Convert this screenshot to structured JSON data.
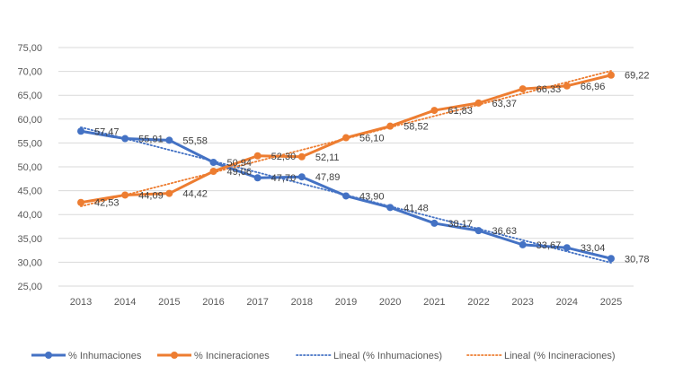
{
  "chart_data": {
    "type": "line",
    "x": [
      "2013",
      "2014",
      "2015",
      "2016",
      "2017",
      "2018",
      "2019",
      "2020",
      "2021",
      "2022",
      "2023",
      "2024",
      "2025"
    ],
    "series": [
      {
        "name": "% Inhumaciones",
        "values": [
          57.47,
          55.91,
          55.58,
          50.94,
          47.7,
          47.89,
          43.9,
          41.48,
          38.17,
          36.63,
          33.67,
          33.04,
          30.78
        ],
        "labels": [
          "57,47",
          "55,91",
          "55,58",
          "50,94",
          "47,70",
          "47,89",
          "43,90",
          "41,48",
          "38,17",
          "36,63",
          "33,67",
          "33,04",
          "30,78"
        ],
        "color": "#4472C4"
      },
      {
        "name": "% Incineraciones",
        "values": [
          42.53,
          44.09,
          44.42,
          49.06,
          52.3,
          52.11,
          56.1,
          58.52,
          61.83,
          63.37,
          66.33,
          66.96,
          69.22
        ],
        "labels": [
          "42,53",
          "44,09",
          "44,42",
          "49,06",
          "52,30",
          "52,11",
          "56,10",
          "58,52",
          "61,83",
          "63,37",
          "66,33",
          "66,96",
          "69,22"
        ],
        "color": "#ED7D31"
      }
    ],
    "trendlines": [
      {
        "name": "Lineal (% Inhumaciones)",
        "of": "% Inhumaciones",
        "style": "dotted",
        "color": "#4472C4"
      },
      {
        "name": "Lineal (% Incineraciones)",
        "of": "% Incineraciones",
        "style": "dotted",
        "color": "#ED7D31"
      }
    ],
    "yticks": [
      "25,00",
      "30,00",
      "35,00",
      "40,00",
      "45,00",
      "50,00",
      "55,00",
      "60,00",
      "65,00",
      "70,00",
      "75,00"
    ],
    "ylim": [
      25,
      75
    ],
    "grid": true,
    "legend": "bottom",
    "title": "",
    "xlabel": "",
    "ylabel": ""
  }
}
